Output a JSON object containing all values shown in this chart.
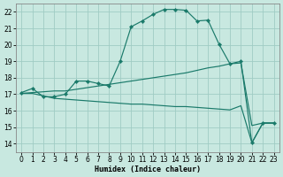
{
  "xlabel": "Humidex (Indice chaleur)",
  "xlim": [
    -0.5,
    23.5
  ],
  "ylim": [
    13.5,
    22.5
  ],
  "xticks": [
    0,
    1,
    2,
    3,
    4,
    5,
    6,
    7,
    8,
    9,
    10,
    11,
    12,
    13,
    14,
    15,
    16,
    17,
    18,
    19,
    20,
    21,
    22,
    23
  ],
  "yticks": [
    14,
    15,
    16,
    17,
    18,
    19,
    20,
    21,
    22
  ],
  "bg_color": "#c8e8e0",
  "grid_color": "#a0ccc4",
  "line_color": "#1a7a6a",
  "line1_x": [
    0,
    1,
    2,
    3,
    4,
    5,
    6,
    7,
    8,
    9,
    10,
    11,
    12,
    13,
    14,
    15,
    16,
    17,
    18,
    19,
    20,
    21,
    22,
    23
  ],
  "line1_y": [
    17.1,
    17.35,
    16.85,
    16.85,
    17.0,
    17.8,
    17.8,
    17.65,
    17.5,
    19.0,
    21.1,
    21.45,
    21.85,
    22.15,
    22.15,
    22.1,
    21.45,
    21.5,
    20.05,
    18.85,
    19.0,
    14.05,
    15.25,
    15.25
  ],
  "line1_markers": [
    0,
    1,
    2,
    3,
    4,
    5,
    6,
    7,
    8,
    9,
    10,
    11,
    12,
    13,
    14,
    15,
    16,
    17,
    18,
    19,
    20,
    21,
    22,
    23
  ],
  "line2_x": [
    0,
    1,
    2,
    3,
    4,
    5,
    6,
    7,
    8,
    9,
    10,
    11,
    12,
    13,
    14,
    15,
    16,
    17,
    18,
    19,
    20,
    21,
    22,
    23
  ],
  "line2_y": [
    17.05,
    17.1,
    17.15,
    17.2,
    17.2,
    17.3,
    17.4,
    17.5,
    17.6,
    17.7,
    17.8,
    17.9,
    18.0,
    18.1,
    18.2,
    18.3,
    18.45,
    18.6,
    18.7,
    18.85,
    18.9,
    15.1,
    15.25,
    15.25
  ],
  "line3_x": [
    0,
    1,
    2,
    3,
    4,
    5,
    6,
    7,
    8,
    9,
    10,
    11,
    12,
    13,
    14,
    15,
    16,
    17,
    18,
    19,
    20,
    21,
    22,
    23
  ],
  "line3_y": [
    17.05,
    17.05,
    16.9,
    16.75,
    16.7,
    16.65,
    16.6,
    16.55,
    16.5,
    16.45,
    16.4,
    16.4,
    16.35,
    16.3,
    16.25,
    16.25,
    16.2,
    16.15,
    16.1,
    16.05,
    16.3,
    14.05,
    15.25,
    15.25
  ]
}
